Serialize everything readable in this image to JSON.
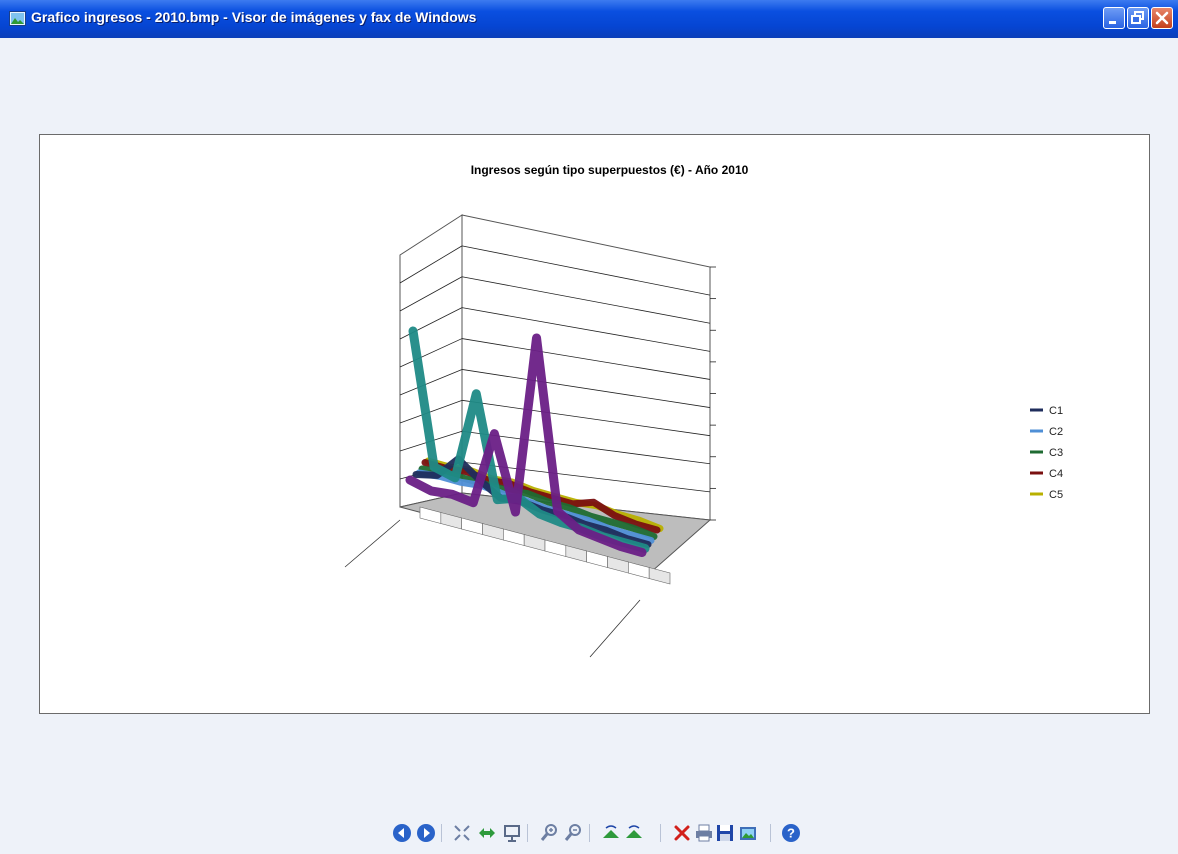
{
  "window": {
    "title": "Grafico ingresos - 2010.bmp - Visor de imágenes y fax de Windows",
    "app_icon": "picture-viewer-icon",
    "controls": [
      "minimize-icon",
      "restore-icon",
      "close-icon"
    ]
  },
  "chart_data": {
    "type": "line",
    "style": "3d-line",
    "title": "Ingresos según tipo superpuestos (€) - Año 2010",
    "categories_count": 12,
    "series": [
      {
        "name": "C1",
        "color": "#1f2d5c",
        "values": [
          3,
          5,
          14,
          8,
          3,
          4,
          3,
          3,
          2,
          2,
          1,
          1
        ]
      },
      {
        "name": "C2",
        "color": "#4f8fd6",
        "values": [
          2,
          3,
          3,
          4,
          3,
          3,
          2,
          2,
          2,
          1,
          1,
          1
        ]
      },
      {
        "name": "C3",
        "color": "#1f6b32",
        "values": [
          2,
          3,
          3,
          3,
          3,
          4,
          3,
          3,
          2,
          2,
          2,
          1
        ]
      },
      {
        "name": "C4",
        "color": "#7a1010",
        "values": [
          3,
          3,
          4,
          3,
          4,
          3,
          3,
          3,
          6,
          3,
          2,
          2
        ]
      },
      {
        "name": "C5",
        "color": "#b8b000",
        "values": [
          2,
          2,
          3,
          2,
          3,
          2,
          2,
          2,
          3,
          2,
          2,
          1
        ]
      },
      {
        "name": "",
        "color": "#1f8a86",
        "values": [
          62,
          10,
          8,
          44,
          4,
          7,
          3,
          2,
          2,
          1,
          1,
          1
        ]
      },
      {
        "name": "",
        "color": "#6a1f86",
        "values": [
          4,
          2,
          3,
          2,
          32,
          3,
          75,
          8,
          3,
          2,
          1,
          1
        ]
      }
    ],
    "legend": {
      "position": "right",
      "entries": [
        "C1",
        "C2",
        "C3",
        "C4",
        "C5"
      ]
    },
    "grid": true
  },
  "toolbar": {
    "buttons": [
      {
        "name": "previous-image-icon",
        "color": "#2a63c9"
      },
      {
        "name": "next-image-icon",
        "color": "#2a63c9"
      },
      {
        "name": "best-fit-icon",
        "color": "#6d7fa3"
      },
      {
        "name": "actual-size-icon",
        "color": "#2e9a3c"
      },
      {
        "name": "slideshow-icon",
        "color": "#5a6a88"
      },
      {
        "name": "zoom-in-icon",
        "color": "#6d7fa3"
      },
      {
        "name": "zoom-out-icon",
        "color": "#6d7fa3"
      },
      {
        "name": "rotate-clockwise-icon",
        "color": "#2e9a3c"
      },
      {
        "name": "rotate-counterclockwise-icon",
        "color": "#2e9a3c"
      },
      {
        "name": "delete-icon",
        "color": "#d2201b"
      },
      {
        "name": "print-icon",
        "color": "#6d7fa3"
      },
      {
        "name": "save-icon",
        "color": "#1f46a8"
      },
      {
        "name": "open-in-editor-icon",
        "color": "#3f6fb8"
      },
      {
        "name": "help-icon",
        "color": "#2a63c9"
      }
    ]
  }
}
